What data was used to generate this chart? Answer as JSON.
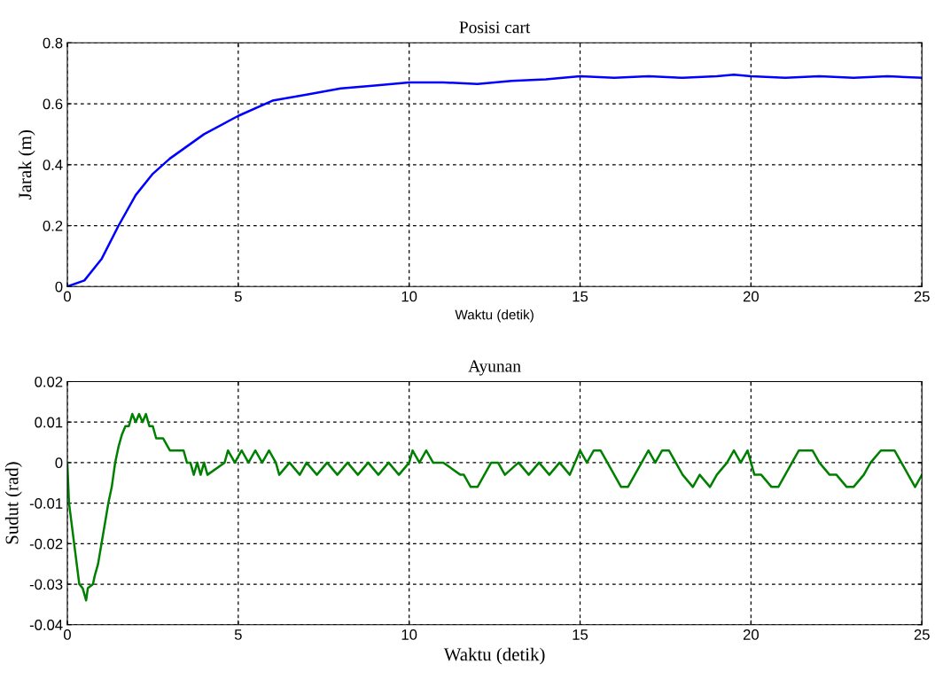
{
  "chart_data": [
    {
      "type": "line",
      "title": "Posisi cart",
      "xlabel": "Waktu (detik)",
      "ylabel": "Jarak (m)",
      "xlim": [
        0,
        25
      ],
      "ylim": [
        0,
        0.8
      ],
      "xticks": [
        0,
        5,
        10,
        15,
        20,
        25
      ],
      "yticks": [
        0,
        0.2,
        0.4,
        0.6,
        0.8
      ],
      "grid": true,
      "line_style": "solid",
      "marker": "none",
      "x": [
        0,
        0.5,
        1,
        1.5,
        2,
        2.5,
        3,
        4,
        5,
        6,
        7,
        8,
        9,
        10,
        11,
        12,
        13,
        14,
        15,
        16,
        17,
        18,
        19,
        19.5,
        20,
        21,
        22,
        23,
        24,
        25
      ],
      "series": [
        {
          "color": "#0000ff",
          "values": [
            0,
            0.02,
            0.09,
            0.2,
            0.3,
            0.37,
            0.42,
            0.5,
            0.56,
            0.61,
            0.63,
            0.65,
            0.66,
            0.67,
            0.67,
            0.665,
            0.675,
            0.68,
            0.69,
            0.685,
            0.69,
            0.685,
            0.69,
            0.695,
            0.69,
            0.685,
            0.69,
            0.685,
            0.69,
            0.685
          ]
        }
      ]
    },
    {
      "type": "line",
      "title": "Ayunan",
      "xlabel": "Waktu (detik)",
      "ylabel": "Sudut (rad)",
      "xlim": [
        0,
        25
      ],
      "ylim": [
        -0.04,
        0.02
      ],
      "xticks": [
        0,
        5,
        10,
        15,
        20,
        25
      ],
      "yticks": [
        -0.04,
        -0.03,
        -0.02,
        -0.01,
        0,
        0.01,
        0.02
      ],
      "grid": true,
      "line_style": "solid",
      "marker": "none",
      "x": [
        0,
        0.05,
        0.2,
        0.35,
        0.45,
        0.55,
        0.6,
        0.75,
        0.8,
        0.9,
        1.0,
        1.1,
        1.2,
        1.3,
        1.4,
        1.5,
        1.6,
        1.7,
        1.8,
        1.9,
        2.0,
        2.1,
        2.2,
        2.3,
        2.4,
        2.5,
        2.6,
        2.8,
        3.0,
        3.2,
        3.4,
        3.5,
        3.6,
        3.7,
        3.8,
        3.9,
        4.0,
        4.1,
        4.6,
        4.7,
        4.9,
        5.1,
        5.3,
        5.5,
        5.7,
        5.9,
        6.1,
        6.2,
        6.5,
        6.8,
        7.0,
        7.3,
        7.6,
        7.9,
        8.2,
        8.5,
        8.8,
        9.1,
        9.4,
        9.7,
        10.0,
        10.1,
        10.3,
        10.5,
        10.7,
        11.0,
        11.5,
        11.6,
        11.8,
        12.0,
        12.2,
        12.4,
        12.6,
        12.8,
        13.2,
        13.5,
        13.8,
        14.1,
        14.4,
        14.7,
        15.0,
        15.2,
        15.4,
        15.6,
        15.8,
        16.0,
        16.2,
        16.4,
        16.6,
        16.8,
        17.0,
        17.2,
        17.4,
        17.6,
        17.8,
        18.0,
        18.3,
        18.5,
        18.8,
        19.0,
        19.3,
        19.5,
        19.7,
        19.9,
        20.1,
        20.3,
        20.6,
        20.8,
        21.0,
        21.2,
        21.4,
        21.6,
        21.8,
        22.0,
        22.3,
        22.5,
        22.8,
        23.0,
        23.3,
        23.5,
        23.8,
        24.0,
        24.2,
        24.4,
        24.6,
        24.8,
        25.0
      ],
      "series": [
        {
          "color": "#008000",
          "values": [
            0,
            -0.01,
            -0.02,
            -0.03,
            -0.031,
            -0.034,
            -0.031,
            -0.03,
            -0.028,
            -0.025,
            -0.02,
            -0.015,
            -0.01,
            -0.006,
            0,
            0.004,
            0.007,
            0.009,
            0.009,
            0.012,
            0.01,
            0.012,
            0.01,
            0.012,
            0.009,
            0.009,
            0.006,
            0.006,
            0.003,
            0.003,
            0.003,
            0,
            0,
            -0.003,
            0,
            -0.003,
            0,
            -0.003,
            0,
            0.003,
            0,
            0.003,
            0,
            0.003,
            0,
            0.003,
            0,
            -0.003,
            0,
            -0.003,
            0,
            -0.003,
            0,
            -0.003,
            0,
            -0.003,
            0,
            -0.003,
            0,
            -0.003,
            0,
            0.003,
            0,
            0.003,
            0,
            0,
            -0.003,
            -0.003,
            -0.006,
            -0.006,
            -0.003,
            0,
            0,
            -0.003,
            0,
            -0.003,
            0,
            -0.003,
            0,
            -0.003,
            0.003,
            0,
            0.003,
            0.003,
            0,
            -0.003,
            -0.006,
            -0.006,
            -0.003,
            0,
            0.003,
            0,
            0.003,
            0.003,
            0,
            -0.003,
            -0.006,
            -0.003,
            -0.006,
            -0.003,
            0,
            0.003,
            0,
            0.003,
            -0.003,
            -0.003,
            -0.006,
            -0.006,
            -0.003,
            0,
            0.003,
            0.003,
            0.003,
            0,
            -0.003,
            -0.003,
            -0.006,
            -0.006,
            -0.003,
            0,
            0.003,
            0.003,
            0.003,
            0,
            -0.003,
            -0.006,
            -0.003
          ]
        }
      ]
    }
  ]
}
